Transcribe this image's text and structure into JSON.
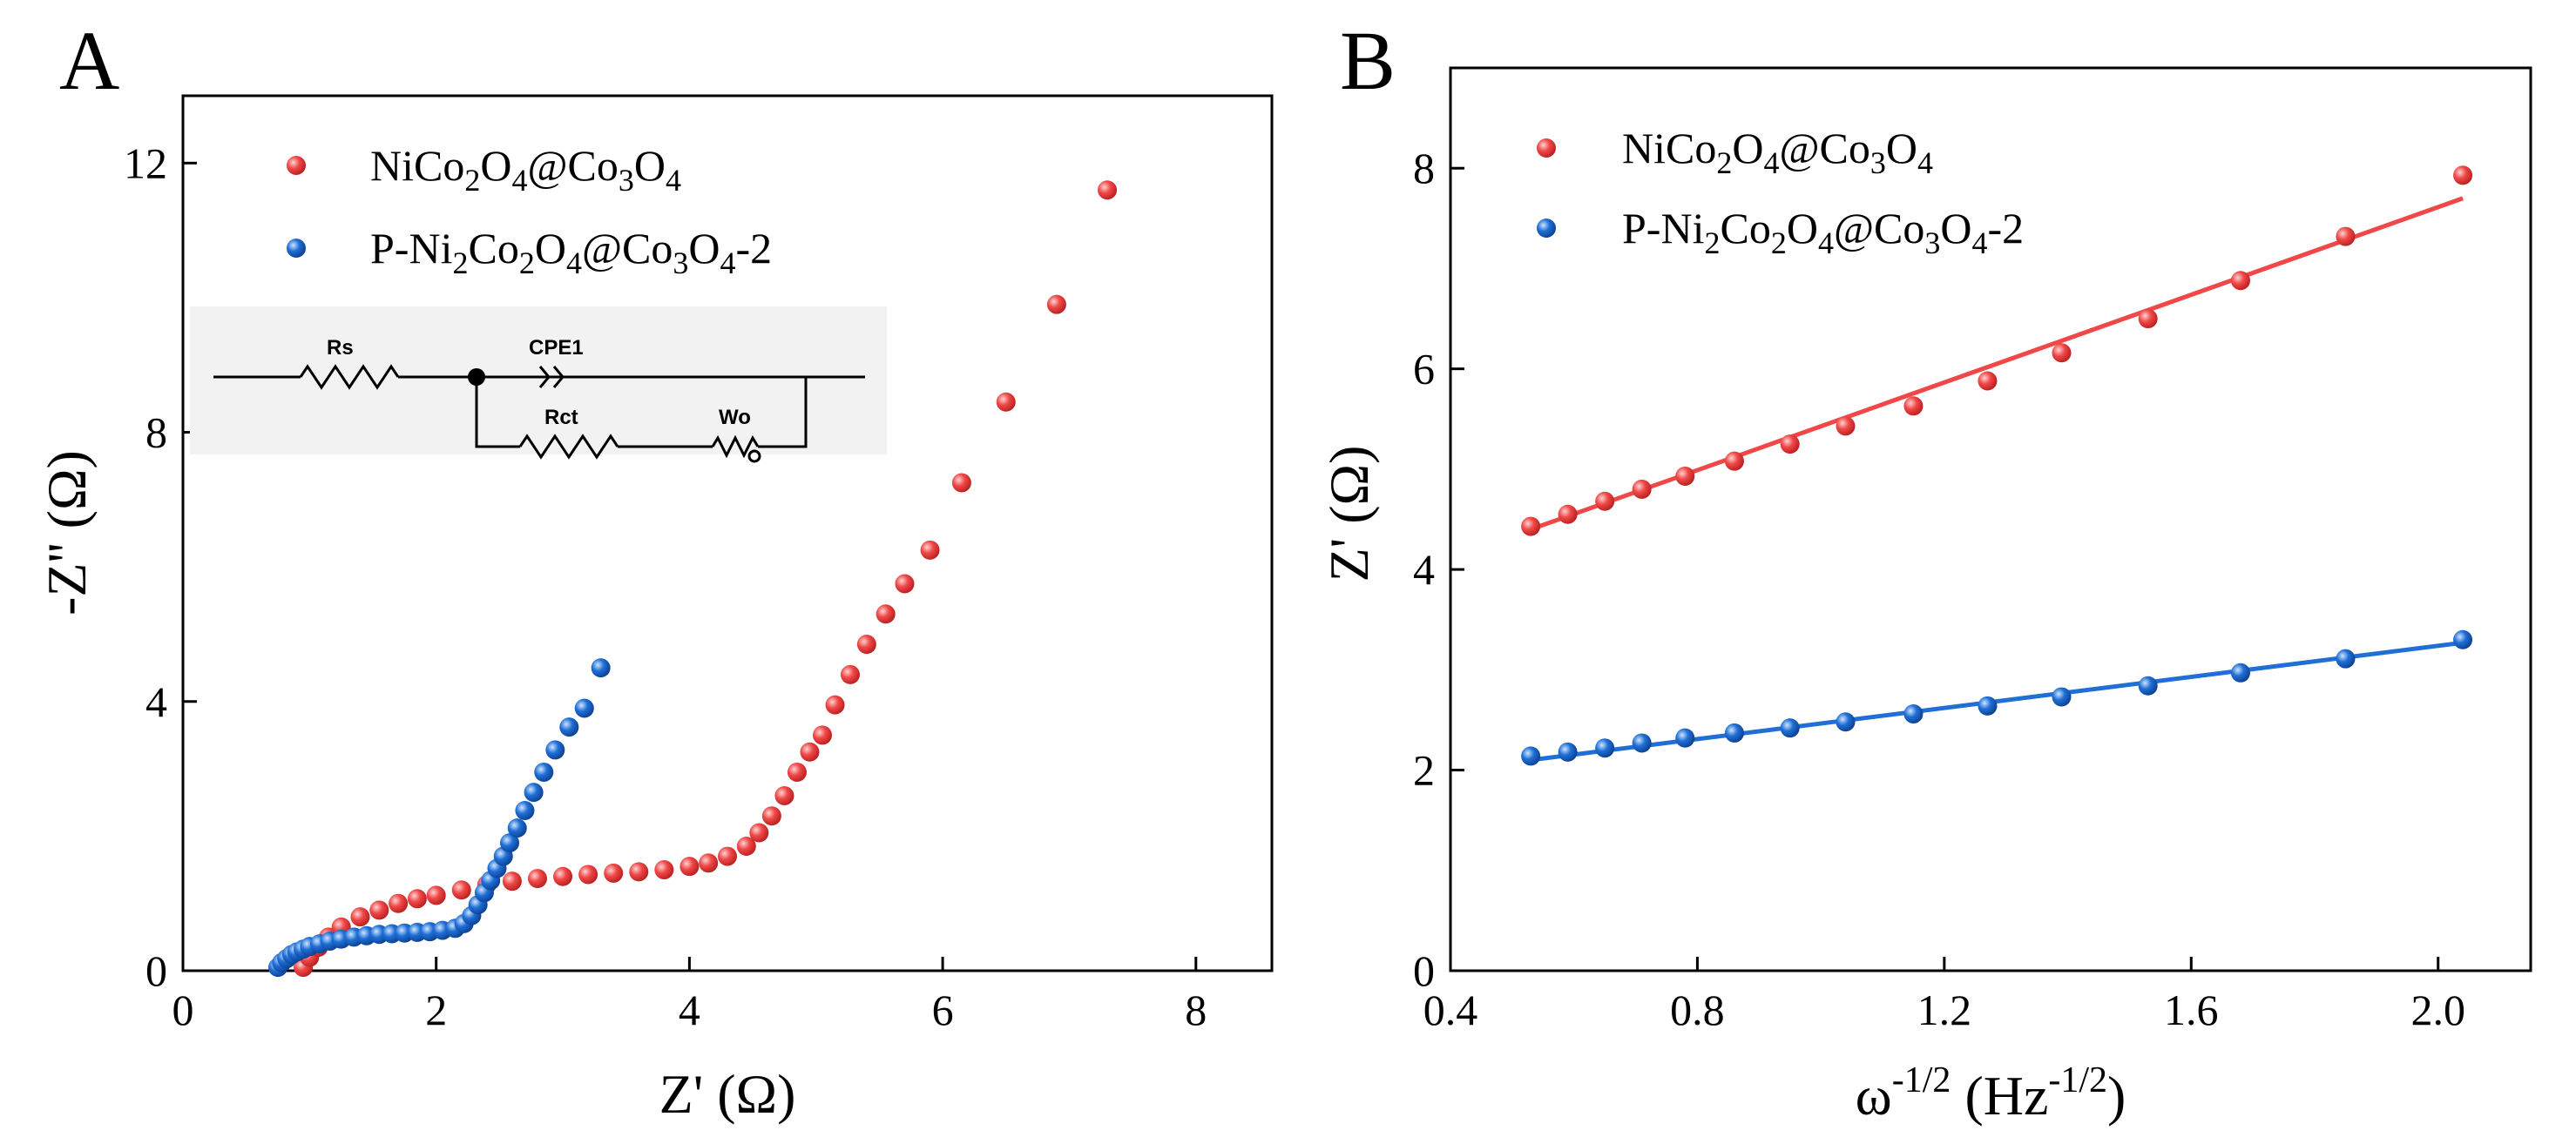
{
  "colors": {
    "red": "#f04848",
    "blue": "#1f6fd6"
  },
  "chart_data": [
    {
      "type": "scatter",
      "panel_label": "A",
      "xlabel": "Z' (Ω)",
      "ylabel": "-Z'' (Ω)",
      "xlim": [
        0,
        8.6
      ],
      "ylim": [
        0,
        13
      ],
      "xticks": [
        "0",
        "2",
        "4",
        "6",
        "8"
      ],
      "yticks": [
        "0",
        "4",
        "8",
        "12"
      ],
      "legend_position": "top-left",
      "inset_circuit": {
        "rs": "Rs",
        "cpe": "CPE1",
        "rct": "Rct",
        "wo": "Wo"
      },
      "series": [
        {
          "name": "NiCo2O4@Co3O4",
          "name_parts": {
            "a": "NiCo",
            "b": "2",
            "c": "O",
            "d": "4",
            "e": "@Co",
            "f": "3",
            "g": "O",
            "h": "4",
            "i": ""
          },
          "color": "#f04848",
          "x": [
            0.95,
            1.0,
            1.07,
            1.15,
            1.25,
            1.4,
            1.55,
            1.7,
            1.85,
            2.0,
            2.2,
            2.4,
            2.6,
            2.8,
            3.0,
            3.2,
            3.4,
            3.6,
            3.8,
            4.0,
            4.15,
            4.3,
            4.45,
            4.55,
            4.65,
            4.75,
            4.85,
            4.95,
            5.05,
            5.15,
            5.27,
            5.4,
            5.55,
            5.7,
            5.9,
            6.15,
            6.5,
            6.9,
            7.3
          ],
          "y": [
            0.05,
            0.2,
            0.35,
            0.5,
            0.65,
            0.8,
            0.9,
            1.0,
            1.07,
            1.12,
            1.2,
            1.28,
            1.33,
            1.37,
            1.4,
            1.43,
            1.45,
            1.47,
            1.5,
            1.55,
            1.6,
            1.7,
            1.85,
            2.05,
            2.3,
            2.6,
            2.95,
            3.25,
            3.5,
            3.95,
            4.4,
            4.85,
            5.3,
            5.75,
            6.25,
            7.25,
            8.45,
            9.9,
            11.6
          ]
        },
        {
          "name": "P-Ni2Co2O4@Co3O4-2",
          "name_parts": {
            "a": "P-Ni",
            "b": "2",
            "c": "Co",
            "d": "2",
            "e": "O",
            "f": "4",
            "g": "@Co",
            "h": "3",
            "i": "O",
            "j": "4",
            "k": "-2"
          },
          "color": "#1f6fd6",
          "x": [
            0.75,
            0.78,
            0.82,
            0.86,
            0.9,
            0.95,
            1.0,
            1.08,
            1.16,
            1.25,
            1.35,
            1.45,
            1.55,
            1.65,
            1.75,
            1.85,
            1.95,
            2.05,
            2.15,
            2.22,
            2.28,
            2.33,
            2.38,
            2.43,
            2.48,
            2.53,
            2.58,
            2.64,
            2.7,
            2.77,
            2.85,
            2.94,
            3.05,
            3.17,
            3.3
          ],
          "y": [
            0.05,
            0.12,
            0.18,
            0.24,
            0.28,
            0.32,
            0.36,
            0.4,
            0.44,
            0.47,
            0.5,
            0.52,
            0.54,
            0.55,
            0.56,
            0.57,
            0.58,
            0.6,
            0.63,
            0.7,
            0.82,
            0.98,
            1.16,
            1.34,
            1.52,
            1.7,
            1.9,
            2.12,
            2.38,
            2.65,
            2.95,
            3.28,
            3.62,
            3.9,
            4.5
          ]
        }
      ]
    },
    {
      "type": "scatter",
      "panel_label": "B",
      "xlabel": "ω",
      "xlabel_parts": {
        "a": "ω",
        "b": "-1/2",
        "c": " (Hz",
        "d": "-1/2",
        "e": ")"
      },
      "ylabel": "Z' (Ω)",
      "xlim": [
        0.4,
        2.15
      ],
      "ylim": [
        0,
        9
      ],
      "xticks": [
        "0.4",
        "0.8",
        "1.2",
        "1.6",
        "2.0"
      ],
      "yticks": [
        "0",
        "2",
        "4",
        "6",
        "8"
      ],
      "legend_position": "top-left",
      "series": [
        {
          "name": "NiCo2O4@Co3O4",
          "name_parts": {
            "a": "NiCo",
            "b": "2",
            "c": "O",
            "d": "4",
            "e": "@Co",
            "f": "3",
            "g": "O",
            "h": "4",
            "i": ""
          },
          "color": "#f04848",
          "x": [
            0.53,
            0.59,
            0.65,
            0.71,
            0.78,
            0.86,
            0.95,
            1.04,
            1.15,
            1.27,
            1.39,
            1.53,
            1.68,
            1.85,
            2.04
          ],
          "y": [
            4.43,
            4.55,
            4.68,
            4.8,
            4.93,
            5.08,
            5.25,
            5.43,
            5.63,
            5.88,
            6.16,
            6.5,
            6.88,
            7.32,
            7.93
          ],
          "fit": {
            "x": [
              0.53,
              2.04
            ],
            "y": [
              4.4,
              7.7
            ]
          }
        },
        {
          "name": "P-Ni2Co2O4@Co3O4-2",
          "name_parts": {
            "a": "P-Ni",
            "b": "2",
            "c": "Co",
            "d": "2",
            "e": "O",
            "f": "4",
            "g": "@Co",
            "h": "3",
            "i": "O",
            "j": "4",
            "k": "-2"
          },
          "color": "#1f6fd6",
          "x": [
            0.53,
            0.59,
            0.65,
            0.71,
            0.78,
            0.86,
            0.95,
            1.04,
            1.15,
            1.27,
            1.39,
            1.53,
            1.68,
            1.85,
            2.04
          ],
          "y": [
            2.14,
            2.18,
            2.22,
            2.27,
            2.32,
            2.37,
            2.42,
            2.48,
            2.56,
            2.64,
            2.73,
            2.84,
            2.97,
            3.11,
            3.3
          ],
          "fit": {
            "x": [
              0.53,
              2.04
            ],
            "y": [
              2.1,
              3.27
            ]
          }
        }
      ]
    }
  ]
}
